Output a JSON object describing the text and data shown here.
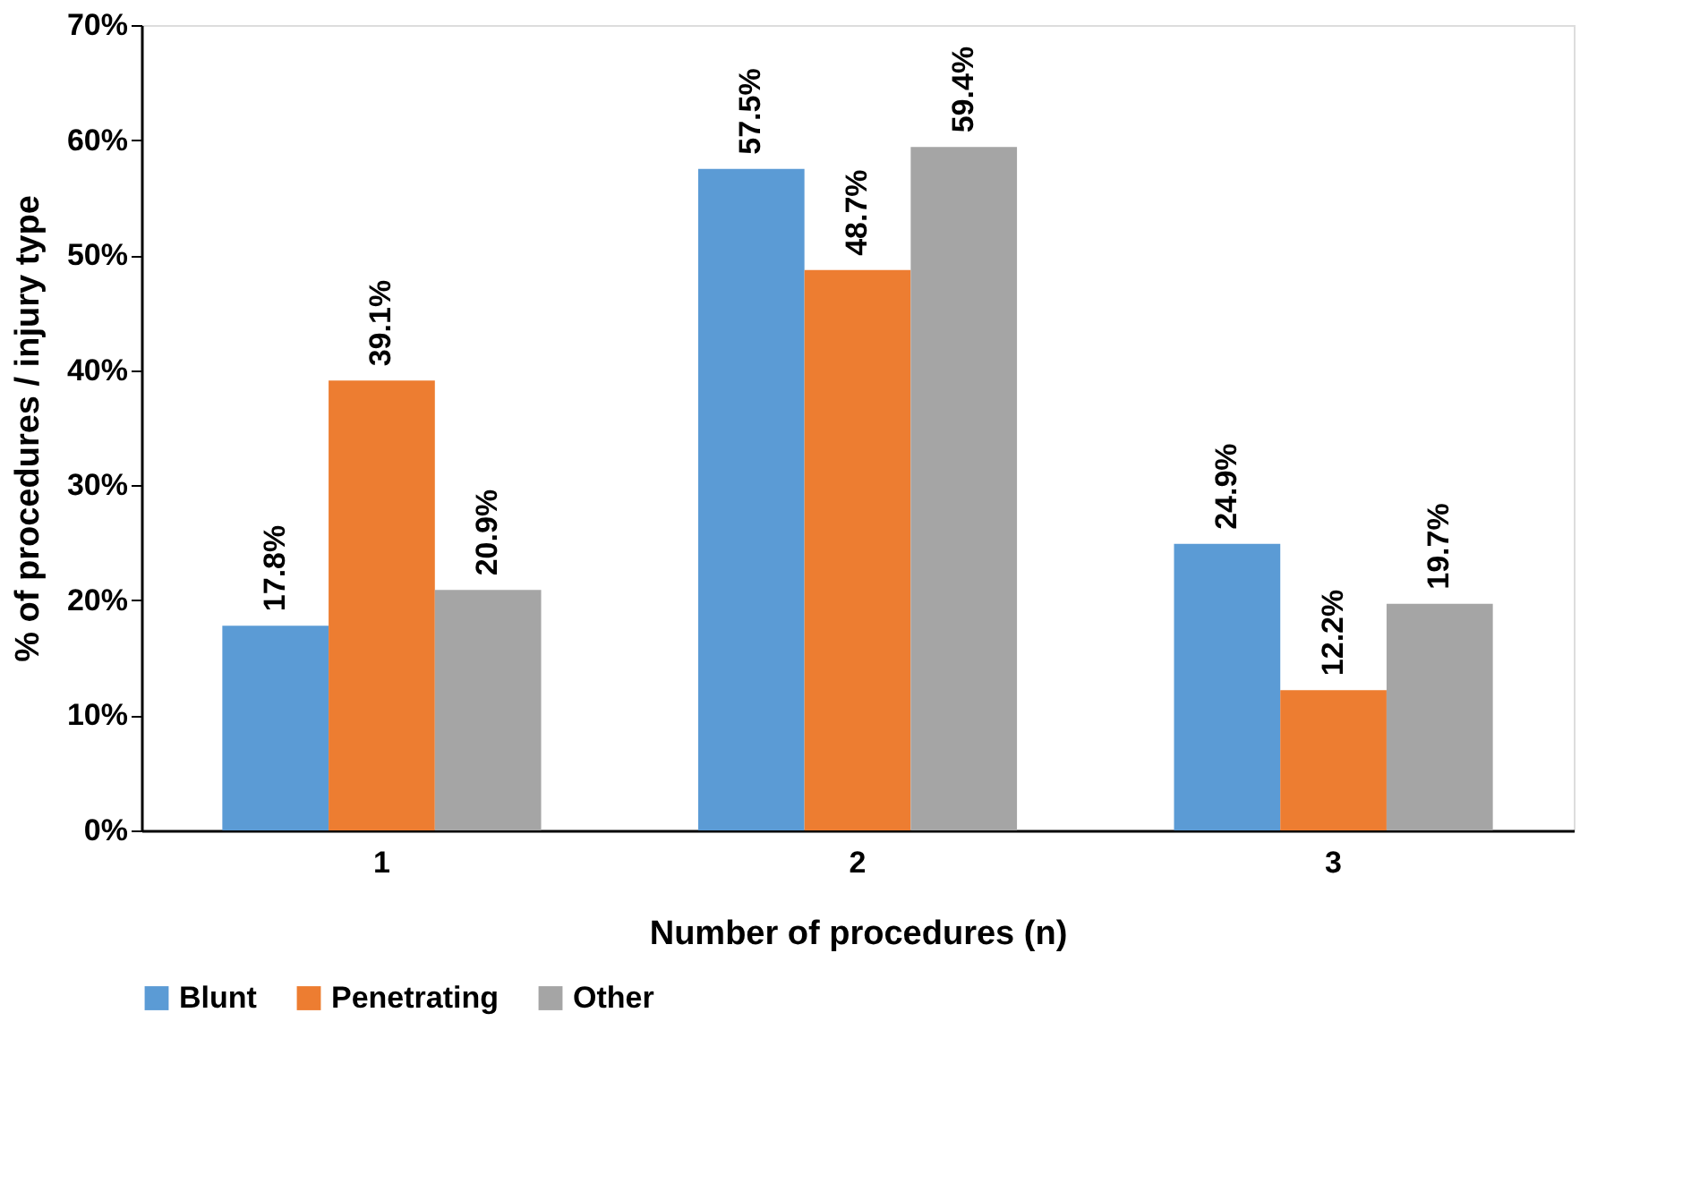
{
  "chart_data": {
    "type": "bar",
    "xlabel": "Number of procedures (n)",
    "ylabel": "% of procedures / injury type",
    "categories": [
      "1",
      "2",
      "3"
    ],
    "series": [
      {
        "name": "Blunt",
        "color": "#5b9bd5",
        "values": [
          17.8,
          57.5,
          24.9
        ],
        "value_labels": [
          "17.8%",
          "57.5%",
          "24.9%"
        ]
      },
      {
        "name": "Penetrating",
        "color": "#ed7d31",
        "values": [
          39.1,
          48.7,
          12.2
        ],
        "value_labels": [
          "39.1%",
          "48.7%",
          "12.2%"
        ]
      },
      {
        "name": "Other",
        "color": "#a5a5a5",
        "values": [
          20.9,
          59.4,
          19.7
        ],
        "value_labels": [
          "20.9%",
          "59.4%",
          "19.7%"
        ]
      }
    ],
    "ylim": [
      0,
      70
    ],
    "yticks": [
      {
        "value": 0,
        "label": "0%"
      },
      {
        "value": 10,
        "label": "10%"
      },
      {
        "value": 20,
        "label": "20%"
      },
      {
        "value": 30,
        "label": "30%"
      },
      {
        "value": 40,
        "label": "40%"
      },
      {
        "value": 50,
        "label": "50%"
      },
      {
        "value": 60,
        "label": "60%"
      },
      {
        "value": 70,
        "label": "70%"
      }
    ],
    "grid": false,
    "legend": "bottom"
  }
}
